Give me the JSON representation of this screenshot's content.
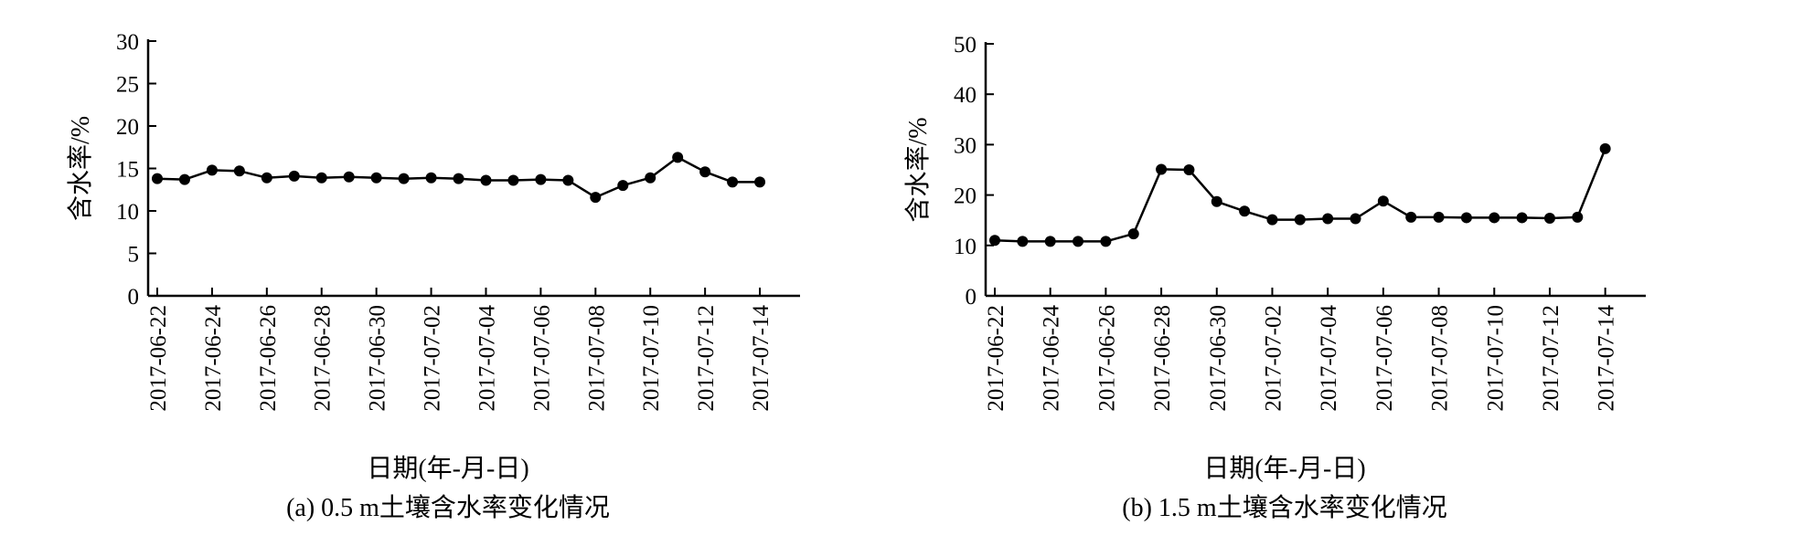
{
  "chart_data": [
    {
      "type": "line",
      "caption": "(a) 0.5 m土壤含水率变化情况",
      "xlabel": "日期(年-月-日)",
      "ylabel": "含水率/%",
      "ylim": [
        0,
        30
      ],
      "yticks": [
        0,
        5,
        10,
        15,
        20,
        25,
        30
      ],
      "xlim": [
        "2017-06-22",
        "2017-07-15"
      ],
      "xticks": [
        "2017-06-22",
        "2017-06-24",
        "2017-06-26",
        "2017-06-28",
        "2017-06-30",
        "2017-07-02",
        "2017-07-04",
        "2017-07-06",
        "2017-07-08",
        "2017-07-10",
        "2017-07-12",
        "2017-07-14"
      ],
      "grid": false,
      "series": [
        {
          "points": [
            [
              "2017-06-22",
              13.8
            ],
            [
              "2017-06-23",
              13.7
            ],
            [
              "2017-06-24",
              14.8
            ],
            [
              "2017-06-25",
              14.7
            ],
            [
              "2017-06-26",
              13.9
            ],
            [
              "2017-06-27",
              14.1
            ],
            [
              "2017-06-28",
              13.9
            ],
            [
              "2017-06-29",
              14.0
            ],
            [
              "2017-06-30",
              13.9
            ],
            [
              "2017-07-01",
              13.8
            ],
            [
              "2017-07-02",
              13.9
            ],
            [
              "2017-07-03",
              13.8
            ],
            [
              "2017-07-04",
              13.6
            ],
            [
              "2017-07-05",
              13.6
            ],
            [
              "2017-07-06",
              13.7
            ],
            [
              "2017-07-07",
              13.6
            ],
            [
              "2017-07-08",
              11.6
            ],
            [
              "2017-07-09",
              13.0
            ],
            [
              "2017-07-10",
              13.9
            ],
            [
              "2017-07-11",
              16.3
            ],
            [
              "2017-07-12",
              14.6
            ],
            [
              "2017-07-13",
              13.4
            ],
            [
              "2017-07-14",
              13.4
            ]
          ]
        }
      ]
    },
    {
      "type": "line",
      "caption": "(b) 1.5 m土壤含水率变化情况",
      "xlabel": "日期(年-月-日)",
      "ylabel": "含水率/%",
      "ylim": [
        0,
        50
      ],
      "yticks": [
        0,
        10,
        20,
        30,
        40,
        50
      ],
      "xlim": [
        "2017-06-22",
        "2017-07-15"
      ],
      "xticks": [
        "2017-06-22",
        "2017-06-24",
        "2017-06-26",
        "2017-06-28",
        "2017-06-30",
        "2017-07-02",
        "2017-07-04",
        "2017-07-06",
        "2017-07-08",
        "2017-07-10",
        "2017-07-12",
        "2017-07-14"
      ],
      "grid": false,
      "series": [
        {
          "points": [
            [
              "2017-06-22",
              11.0
            ],
            [
              "2017-06-23",
              10.8
            ],
            [
              "2017-06-24",
              10.8
            ],
            [
              "2017-06-25",
              10.8
            ],
            [
              "2017-06-26",
              10.8
            ],
            [
              "2017-06-27",
              12.3
            ],
            [
              "2017-06-28",
              25.1
            ],
            [
              "2017-06-29",
              25.0
            ],
            [
              "2017-06-30",
              18.7
            ],
            [
              "2017-07-01",
              16.8
            ],
            [
              "2017-07-02",
              15.1
            ],
            [
              "2017-07-03",
              15.1
            ],
            [
              "2017-07-04",
              15.3
            ],
            [
              "2017-07-05",
              15.3
            ],
            [
              "2017-07-06",
              18.8
            ],
            [
              "2017-07-07",
              15.6
            ],
            [
              "2017-07-08",
              15.6
            ],
            [
              "2017-07-09",
              15.5
            ],
            [
              "2017-07-10",
              15.5
            ],
            [
              "2017-07-11",
              15.5
            ],
            [
              "2017-07-12",
              15.4
            ],
            [
              "2017-07-13",
              15.6
            ],
            [
              "2017-07-14",
              29.2
            ]
          ]
        }
      ]
    }
  ]
}
